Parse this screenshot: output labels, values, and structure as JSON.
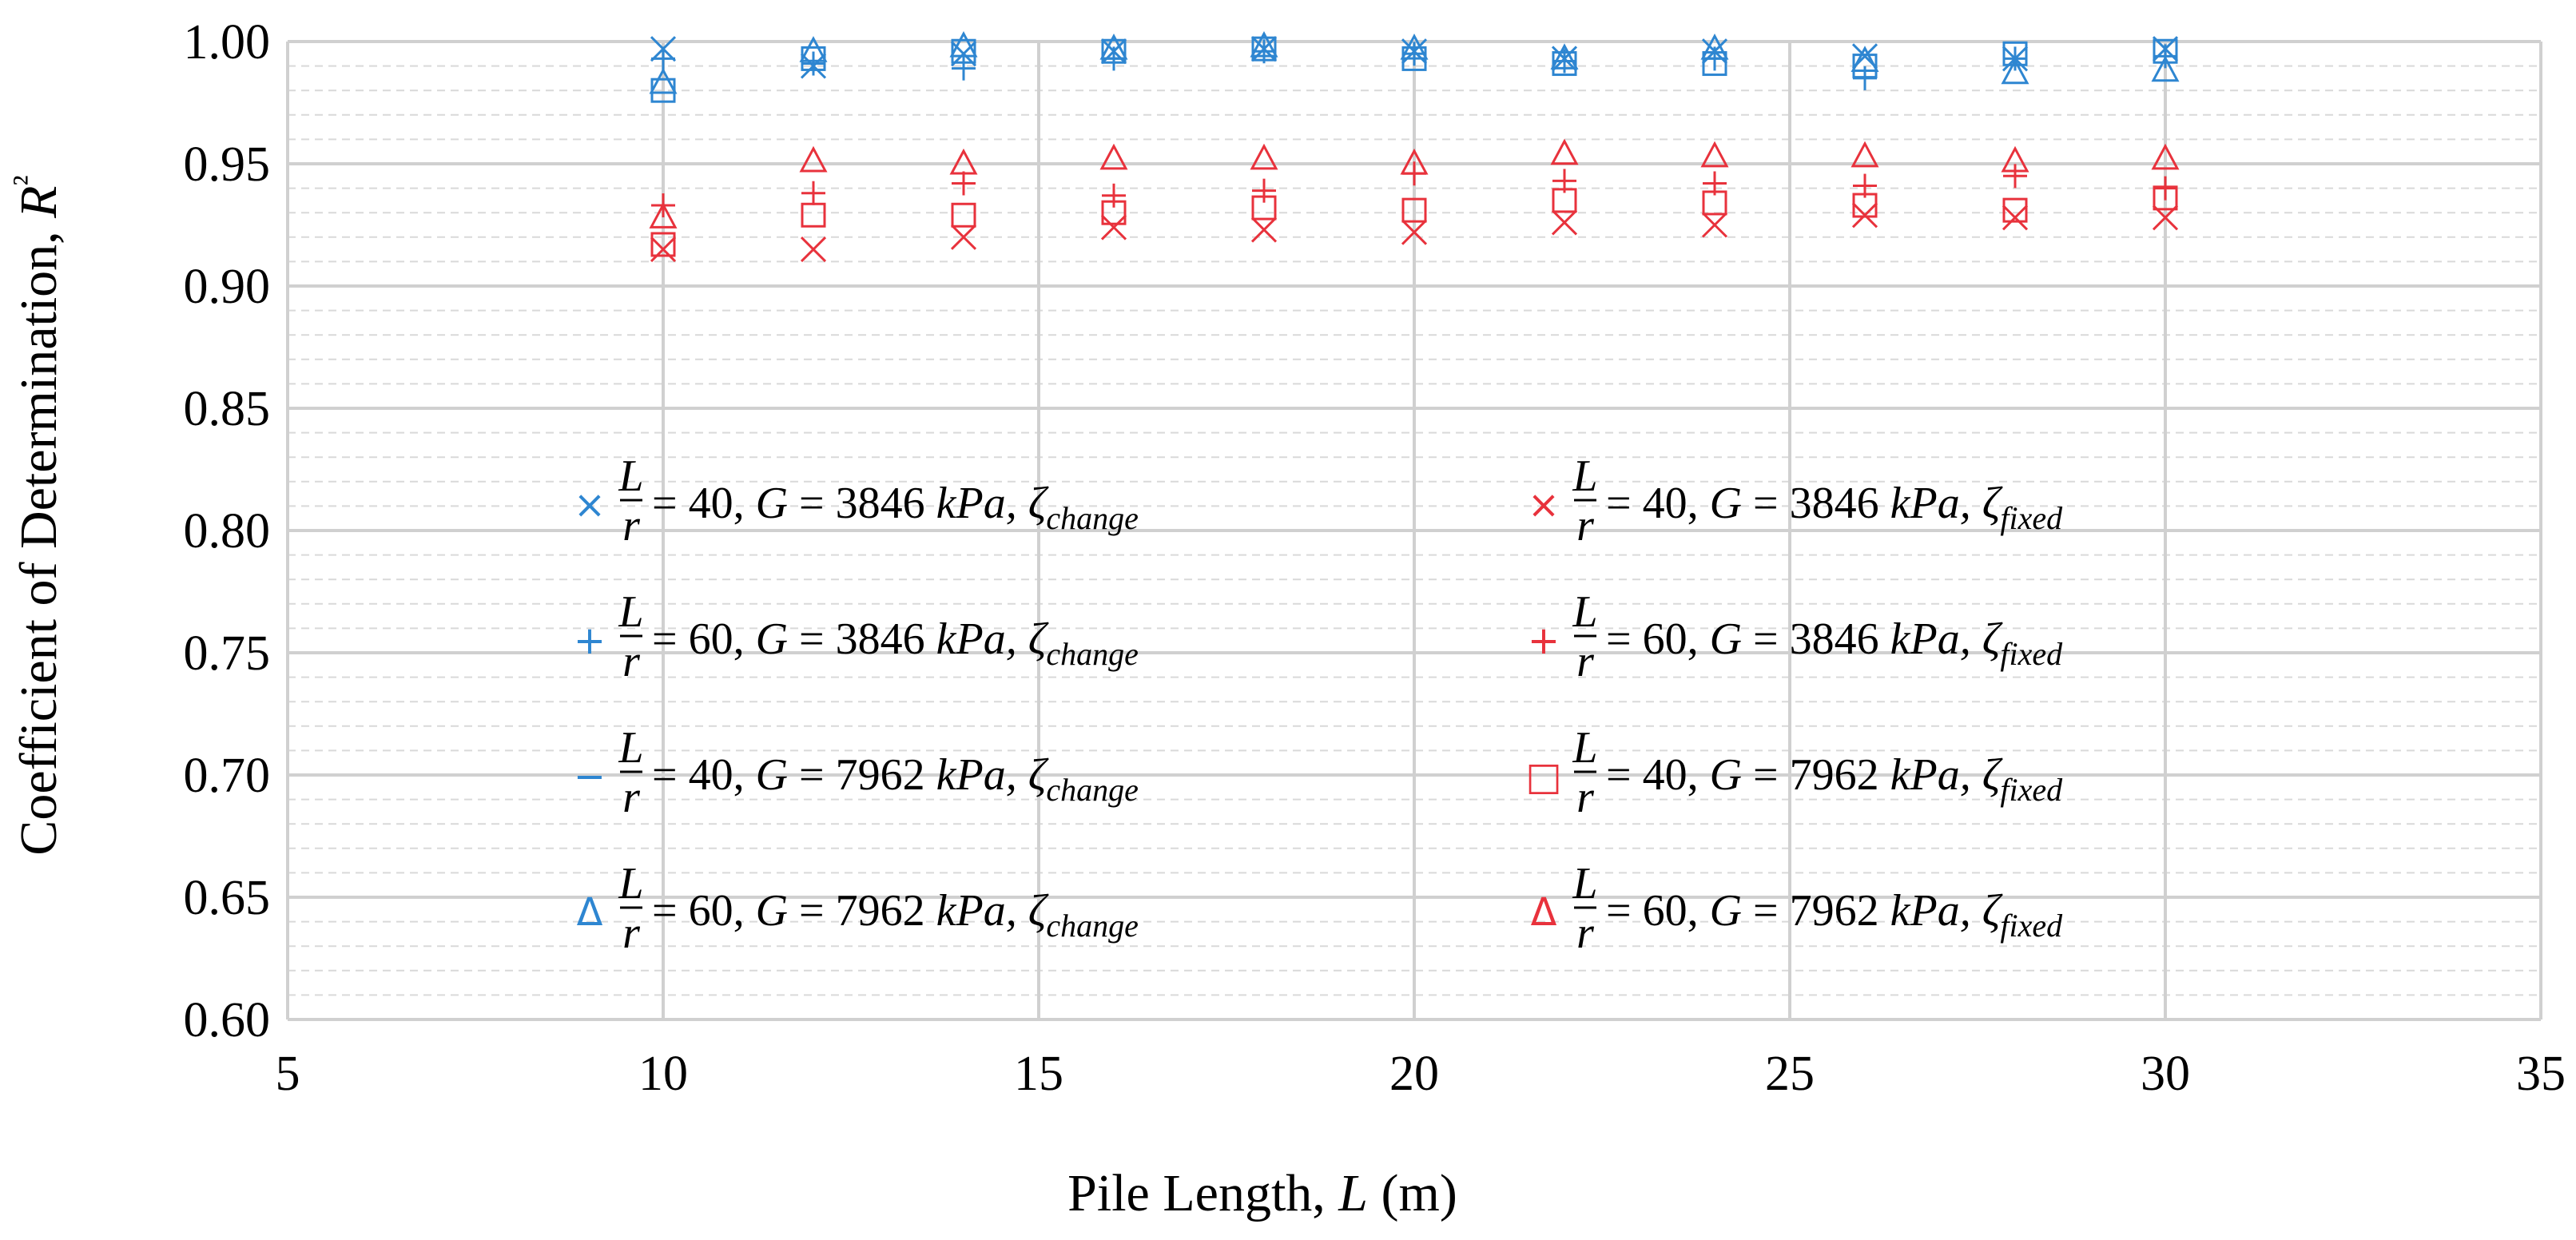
{
  "chart_data": {
    "type": "scatter",
    "title": "",
    "xlabel": "Pile Length, L (m)",
    "ylabel": "Coefficient of Determination, R²",
    "xlim": [
      5,
      35
    ],
    "ylim": [
      0.6,
      1.0
    ],
    "x_ticks": [
      "5",
      "10",
      "15",
      "20",
      "25",
      "30",
      "35"
    ],
    "y_ticks": [
      "0.60",
      "0.65",
      "0.70",
      "0.75",
      "0.80",
      "0.85",
      "0.90",
      "0.95",
      "1.00"
    ],
    "grid": true,
    "x": [
      10,
      12,
      14,
      16,
      18,
      20,
      22,
      24,
      26,
      28,
      30
    ],
    "series": [
      {
        "name": "L/r = 40, G = 3846 kPa, ζchange",
        "marker": "x",
        "color": "#2E86D1",
        "values": [
          0.997,
          0.99,
          0.995,
          0.996,
          0.997,
          0.996,
          0.993,
          0.996,
          0.994,
          0.993,
          0.997
        ]
      },
      {
        "name": "L/r = 60, G = 3846 kPa, ζchange",
        "marker": "plus",
        "color": "#2E86D1",
        "values": [
          0.993,
          0.991,
          0.989,
          0.993,
          0.996,
          0.995,
          0.992,
          0.993,
          0.985,
          0.993,
          0.994
        ]
      },
      {
        "name": "L/r = 40, G = 7962 kPa, ζchange",
        "marker": "square",
        "color": "#2E86D1",
        "values": [
          0.98,
          0.993,
          0.996,
          0.996,
          0.997,
          0.993,
          0.991,
          0.991,
          0.99,
          0.995,
          0.996
        ]
      },
      {
        "name": "L/r = 60, G = 7962 kPa, ζchange",
        "marker": "triangle",
        "color": "#2E86D1",
        "values": [
          0.983,
          0.996,
          0.998,
          0.997,
          0.998,
          0.997,
          0.993,
          0.997,
          0.992,
          0.987,
          0.988
        ]
      },
      {
        "name": "L/r = 40, G = 3846 kPa, ζfixed",
        "marker": "x",
        "color": "#E8323C",
        "values": [
          0.915,
          0.915,
          0.92,
          0.924,
          0.923,
          0.922,
          0.926,
          0.925,
          0.929,
          0.928,
          0.928
        ]
      },
      {
        "name": "L/r = 60, G = 3846 kPa, ζfixed",
        "marker": "plus",
        "color": "#E8323C",
        "values": [
          0.933,
          0.938,
          0.942,
          0.937,
          0.939,
          0.946,
          0.943,
          0.942,
          0.941,
          0.945,
          0.94
        ]
      },
      {
        "name": "L/r = 40, G = 7962 kPa, ζfixed",
        "marker": "square",
        "color": "#E8323C",
        "values": [
          0.917,
          0.929,
          0.929,
          0.93,
          0.932,
          0.931,
          0.935,
          0.934,
          0.933,
          0.931,
          0.936
        ]
      },
      {
        "name": "L/r = 60, G = 7962 kPa, ζfixed",
        "marker": "triangle",
        "color": "#E8323C",
        "values": [
          0.928,
          0.951,
          0.95,
          0.952,
          0.952,
          0.95,
          0.954,
          0.953,
          0.953,
          0.951,
          0.952
        ]
      }
    ],
    "legend": {
      "placement": "inside-lower",
      "items": [
        {
          "glyph": "×",
          "color": "#2E86D1",
          "ratio_value": "40",
          "g_value": "3846",
          "unit": "kPa",
          "subscript": "change"
        },
        {
          "glyph": "+",
          "color": "#2E86D1",
          "ratio_value": "60",
          "g_value": "3846",
          "unit": "kPa",
          "subscript": "change"
        },
        {
          "glyph": "−",
          "color": "#2E86D1",
          "ratio_value": "40",
          "g_value": "7962",
          "unit": "kPa",
          "subscript": "change"
        },
        {
          "glyph": "Δ",
          "color": "#2E86D1",
          "ratio_value": "60",
          "g_value": "7962",
          "unit": "kPa",
          "subscript": "change"
        },
        {
          "glyph": "×",
          "color": "#E8323C",
          "ratio_value": "40",
          "g_value": "3846",
          "unit": "kPa",
          "subscript": "fixed"
        },
        {
          "glyph": "+",
          "color": "#E8323C",
          "ratio_value": "60",
          "g_value": "3846",
          "unit": "kPa",
          "subscript": "fixed"
        },
        {
          "glyph": "□",
          "color": "#E8323C",
          "ratio_value": "40",
          "g_value": "7962",
          "unit": "kPa",
          "subscript": "fixed"
        },
        {
          "glyph": "Δ",
          "color": "#E8323C",
          "ratio_value": "60",
          "g_value": "7962",
          "unit": "kPa",
          "subscript": "fixed"
        }
      ]
    }
  }
}
